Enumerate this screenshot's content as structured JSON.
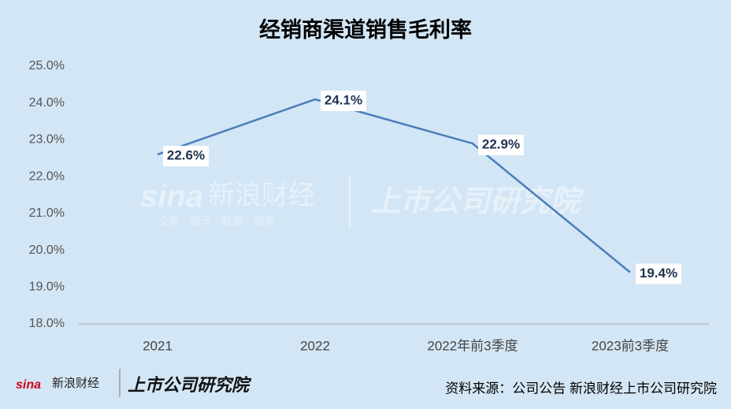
{
  "chart_data": {
    "type": "line",
    "title": "经销商渠道销售毛利率",
    "categories": [
      "2021",
      "2022",
      "2022年前3季度",
      "2023前3季度"
    ],
    "series": [
      {
        "name": "销售毛利率",
        "color": "#4a7ebb",
        "values": [
          22.6,
          24.1,
          22.9,
          19.4
        ],
        "value_labels": [
          "22.6%",
          "24.1%",
          "22.9%",
          "19.4%"
        ]
      }
    ],
    "ylim": [
      18,
      25
    ],
    "yticks": [
      {
        "value": 18,
        "label": "18.0%"
      },
      {
        "value": 19,
        "label": "19.0%"
      },
      {
        "value": 20,
        "label": "20.0%"
      },
      {
        "value": 21,
        "label": "21.0%"
      },
      {
        "value": 22,
        "label": "22.0%"
      },
      {
        "value": 23,
        "label": "23.0%"
      },
      {
        "value": 24,
        "label": "24.0%"
      },
      {
        "value": 25,
        "label": "25.0%"
      }
    ],
    "grid": false,
    "watermark": [
      "sina",
      "新浪财经",
      "交易 · 资讯 · 数据 · 服务",
      "上市公司研究院"
    ],
    "source": "资料来源：公司公告 新浪财经上市公司研究院"
  }
}
